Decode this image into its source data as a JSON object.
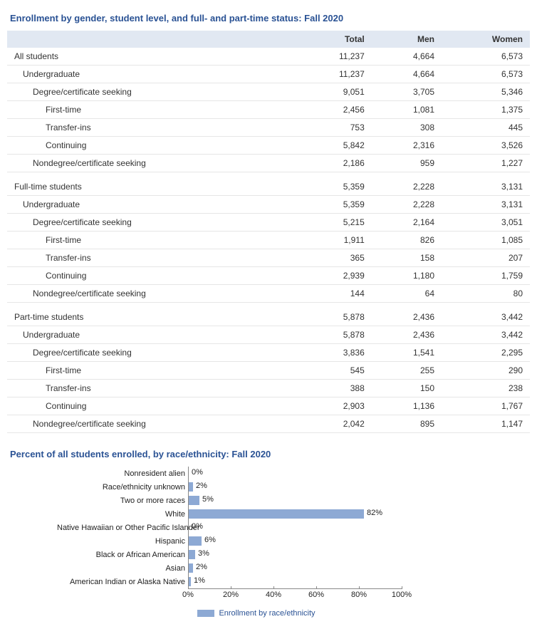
{
  "table": {
    "title": "Enrollment by gender, student level, and full- and part-time status: Fall 2020",
    "columns": [
      "",
      "Total",
      "Men",
      "Women"
    ],
    "sections": [
      {
        "rows": [
          {
            "label": "All students",
            "indent": 0,
            "total": "11,237",
            "men": "4,664",
            "women": "6,573"
          },
          {
            "label": "Undergraduate",
            "indent": 1,
            "total": "11,237",
            "men": "4,664",
            "women": "6,573"
          },
          {
            "label": "Degree/certificate seeking",
            "indent": 2,
            "total": "9,051",
            "men": "3,705",
            "women": "5,346"
          },
          {
            "label": "First-time",
            "indent": 3,
            "total": "2,456",
            "men": "1,081",
            "women": "1,375"
          },
          {
            "label": "Transfer-ins",
            "indent": 3,
            "total": "753",
            "men": "308",
            "women": "445"
          },
          {
            "label": "Continuing",
            "indent": 3,
            "total": "5,842",
            "men": "2,316",
            "women": "3,526"
          },
          {
            "label": "Nondegree/certificate seeking",
            "indent": 2,
            "total": "2,186",
            "men": "959",
            "women": "1,227"
          }
        ]
      },
      {
        "rows": [
          {
            "label": "Full-time students",
            "indent": 0,
            "total": "5,359",
            "men": "2,228",
            "women": "3,131"
          },
          {
            "label": "Undergraduate",
            "indent": 1,
            "total": "5,359",
            "men": "2,228",
            "women": "3,131"
          },
          {
            "label": "Degree/certificate seeking",
            "indent": 2,
            "total": "5,215",
            "men": "2,164",
            "women": "3,051"
          },
          {
            "label": "First-time",
            "indent": 3,
            "total": "1,911",
            "men": "826",
            "women": "1,085"
          },
          {
            "label": "Transfer-ins",
            "indent": 3,
            "total": "365",
            "men": "158",
            "women": "207"
          },
          {
            "label": "Continuing",
            "indent": 3,
            "total": "2,939",
            "men": "1,180",
            "women": "1,759"
          },
          {
            "label": "Nondegree/certificate seeking",
            "indent": 2,
            "total": "144",
            "men": "64",
            "women": "80"
          }
        ]
      },
      {
        "rows": [
          {
            "label": "Part-time students",
            "indent": 0,
            "total": "5,878",
            "men": "2,436",
            "women": "3,442"
          },
          {
            "label": "Undergraduate",
            "indent": 1,
            "total": "5,878",
            "men": "2,436",
            "women": "3,442"
          },
          {
            "label": "Degree/certificate seeking",
            "indent": 2,
            "total": "3,836",
            "men": "1,541",
            "women": "2,295"
          },
          {
            "label": "First-time",
            "indent": 3,
            "total": "545",
            "men": "255",
            "women": "290"
          },
          {
            "label": "Transfer-ins",
            "indent": 3,
            "total": "388",
            "men": "150",
            "women": "238"
          },
          {
            "label": "Continuing",
            "indent": 3,
            "total": "2,903",
            "men": "1,136",
            "women": "1,767"
          },
          {
            "label": "Nondegree/certificate seeking",
            "indent": 2,
            "total": "2,042",
            "men": "895",
            "women": "1,147"
          }
        ]
      }
    ]
  },
  "chart": {
    "title": "Percent of all students enrolled, by race/ethnicity: Fall 2020",
    "type": "bar-horizontal",
    "bar_color": "#8da9d4",
    "axis_color": "#888888",
    "label_fontsize": 11,
    "xmax": 100,
    "ticks": [
      0,
      20,
      40,
      60,
      80,
      100
    ],
    "categories": [
      {
        "label": "Nonresident alien",
        "value": 0
      },
      {
        "label": "Race/ethnicity unknown",
        "value": 2
      },
      {
        "label": "Two or more races",
        "value": 5
      },
      {
        "label": "White",
        "value": 82
      },
      {
        "label": "Native Hawaiian or Other Pacific Islander",
        "value": 0
      },
      {
        "label": "Hispanic",
        "value": 6
      },
      {
        "label": "Black or African American",
        "value": 3
      },
      {
        "label": "Asian",
        "value": 2
      },
      {
        "label": "American Indian or Alaska Native",
        "value": 1
      }
    ],
    "legend": "Enrollment by race/ethnicity"
  }
}
